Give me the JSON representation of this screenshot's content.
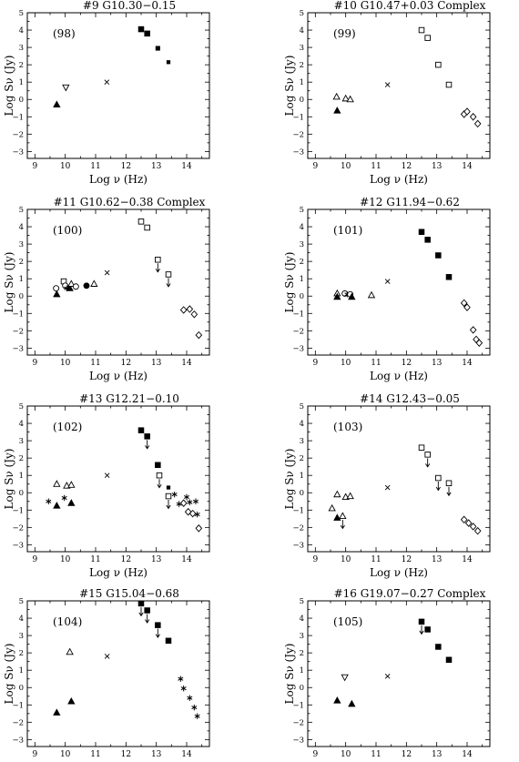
{
  "axis": {
    "xlabel": "Log ν (Hz)",
    "ylabel": "Log Sν (Jy)",
    "x_ticks": [
      9,
      10,
      11,
      12,
      13,
      14
    ],
    "y_ticks": [
      -3,
      -2,
      -1,
      0,
      1,
      2,
      3,
      4,
      5
    ],
    "xlim": [
      8.75,
      14.75
    ],
    "ylim": [
      -3.4,
      5.0
    ]
  },
  "chart_data": [
    {
      "type": "scatter",
      "title": "#9   G10.30−0.15",
      "label": "(98)",
      "points": [
        {
          "x": 9.72,
          "y": -0.3,
          "m": "tri_f"
        },
        {
          "x": 10.02,
          "y": 0.7,
          "m": "tri_inv_o"
        },
        {
          "x": 11.37,
          "y": 1.0,
          "m": "x"
        },
        {
          "x": 12.5,
          "y": 4.05,
          "m": "sq_f",
          "s": 1.0
        },
        {
          "x": 12.7,
          "y": 3.8,
          "m": "sq_f",
          "s": 1.0
        },
        {
          "x": 13.05,
          "y": 2.95,
          "m": "sq_f",
          "s": 0.75
        },
        {
          "x": 13.4,
          "y": 2.15,
          "m": "sq_f",
          "s": 0.6
        }
      ]
    },
    {
      "type": "scatter",
      "title": "#10   G10.47+0.03  Complex",
      "label": "(99)",
      "points": [
        {
          "x": 9.7,
          "y": 0.15,
          "m": "tri_o"
        },
        {
          "x": 9.72,
          "y": -0.65,
          "m": "tri_f"
        },
        {
          "x": 10.0,
          "y": 0.05,
          "m": "tri_o"
        },
        {
          "x": 10.15,
          "y": 0.0,
          "m": "tri_o"
        },
        {
          "x": 11.38,
          "y": 0.85,
          "m": "x"
        },
        {
          "x": 12.5,
          "y": 4.0,
          "m": "sq_o"
        },
        {
          "x": 12.7,
          "y": 3.55,
          "m": "sq_o"
        },
        {
          "x": 13.05,
          "y": 2.0,
          "m": "sq_o"
        },
        {
          "x": 13.4,
          "y": 0.85,
          "m": "sq_o"
        },
        {
          "x": 13.9,
          "y": -0.85,
          "m": "dia_o"
        },
        {
          "x": 14.0,
          "y": -0.7,
          "m": "dia_o"
        },
        {
          "x": 14.2,
          "y": -1.0,
          "m": "dia_o"
        },
        {
          "x": 14.35,
          "y": -1.4,
          "m": "dia_o"
        }
      ]
    },
    {
      "type": "scatter",
      "title": "#11   G10.62−0.38  Complex",
      "label": "(100)",
      "points": [
        {
          "x": 9.7,
          "y": 0.45,
          "m": "circ_o"
        },
        {
          "x": 9.72,
          "y": 0.1,
          "m": "tri_f"
        },
        {
          "x": 9.95,
          "y": 0.85,
          "m": "sq_o"
        },
        {
          "x": 10.0,
          "y": 0.6,
          "m": "circ_o"
        },
        {
          "x": 10.05,
          "y": 0.45,
          "m": "star"
        },
        {
          "x": 10.15,
          "y": 0.45,
          "m": "tri_f"
        },
        {
          "x": 10.2,
          "y": 0.7,
          "m": "tri_o"
        },
        {
          "x": 10.35,
          "y": 0.55,
          "m": "circ_o"
        },
        {
          "x": 10.7,
          "y": 0.6,
          "m": "circ_f"
        },
        {
          "x": 10.95,
          "y": 0.7,
          "m": "tri_o"
        },
        {
          "x": 11.38,
          "y": 1.35,
          "m": "x"
        },
        {
          "x": 12.5,
          "y": 4.3,
          "m": "sq_o"
        },
        {
          "x": 12.7,
          "y": 3.95,
          "m": "sq_o"
        },
        {
          "x": 13.05,
          "y": 2.1,
          "m": "sq_o",
          "ul": true
        },
        {
          "x": 13.4,
          "y": 1.25,
          "m": "sq_o",
          "ul": true
        },
        {
          "x": 13.9,
          "y": -0.8,
          "m": "dia_o"
        },
        {
          "x": 14.1,
          "y": -0.75,
          "m": "dia_o"
        },
        {
          "x": 14.25,
          "y": -1.05,
          "m": "dia_o"
        },
        {
          "x": 14.4,
          "y": -2.25,
          "m": "dia_o"
        }
      ]
    },
    {
      "type": "scatter",
      "title": "#12   G11.94−0.62",
      "label": "(101)",
      "points": [
        {
          "x": 9.72,
          "y": 0.15,
          "m": "tri_o"
        },
        {
          "x": 9.72,
          "y": -0.05,
          "m": "tri_f"
        },
        {
          "x": 9.97,
          "y": 0.15,
          "m": "circ_o"
        },
        {
          "x": 10.05,
          "y": 0.1,
          "m": "star"
        },
        {
          "x": 10.15,
          "y": 0.1,
          "m": "circ_o"
        },
        {
          "x": 10.2,
          "y": -0.05,
          "m": "tri_f"
        },
        {
          "x": 10.85,
          "y": 0.05,
          "m": "tri_o"
        },
        {
          "x": 11.38,
          "y": 0.85,
          "m": "x"
        },
        {
          "x": 12.5,
          "y": 3.7,
          "m": "sq_f"
        },
        {
          "x": 12.7,
          "y": 3.25,
          "m": "sq_f"
        },
        {
          "x": 13.05,
          "y": 2.35,
          "m": "sq_f"
        },
        {
          "x": 13.4,
          "y": 1.1,
          "m": "sq_f"
        },
        {
          "x": 13.9,
          "y": -0.4,
          "m": "dia_o"
        },
        {
          "x": 14.0,
          "y": -0.65,
          "m": "dia_o"
        },
        {
          "x": 14.2,
          "y": -1.95,
          "m": "dia_o"
        },
        {
          "x": 14.3,
          "y": -2.5,
          "m": "dia_o"
        },
        {
          "x": 14.4,
          "y": -2.7,
          "m": "dia_o"
        }
      ]
    },
    {
      "type": "scatter",
      "title": "#13   G12.21−0.10",
      "label": "(102)",
      "points": [
        {
          "x": 9.45,
          "y": -0.5,
          "m": "star"
        },
        {
          "x": 9.72,
          "y": 0.5,
          "m": "tri_o"
        },
        {
          "x": 9.72,
          "y": -0.75,
          "m": "tri_f"
        },
        {
          "x": 9.97,
          "y": -0.3,
          "m": "star"
        },
        {
          "x": 10.05,
          "y": 0.4,
          "m": "tri_o"
        },
        {
          "x": 10.2,
          "y": 0.45,
          "m": "tri_o"
        },
        {
          "x": 10.2,
          "y": -0.6,
          "m": "tri_f"
        },
        {
          "x": 11.38,
          "y": 1.0,
          "m": "x"
        },
        {
          "x": 12.5,
          "y": 3.6,
          "m": "sq_f"
        },
        {
          "x": 12.7,
          "y": 3.25,
          "m": "sq_f",
          "ul": true
        },
        {
          "x": 13.05,
          "y": 1.6,
          "m": "sq_f"
        },
        {
          "x": 13.1,
          "y": 1.0,
          "m": "sq_o",
          "ul": true
        },
        {
          "x": 13.4,
          "y": 0.3,
          "m": "sq_f",
          "s": 0.6
        },
        {
          "x": 13.4,
          "y": -0.2,
          "m": "sq_o",
          "ul": true
        },
        {
          "x": 13.6,
          "y": -0.1,
          "m": "star"
        },
        {
          "x": 13.75,
          "y": -0.65,
          "m": "star"
        },
        {
          "x": 13.9,
          "y": -0.6,
          "m": "dia_o"
        },
        {
          "x": 14.0,
          "y": -0.25,
          "m": "star"
        },
        {
          "x": 14.05,
          "y": -1.1,
          "m": "dia_o"
        },
        {
          "x": 14.1,
          "y": -0.55,
          "m": "star"
        },
        {
          "x": 14.2,
          "y": -1.2,
          "m": "dia_o"
        },
        {
          "x": 14.3,
          "y": -0.5,
          "m": "star"
        },
        {
          "x": 14.35,
          "y": -1.25,
          "m": "star"
        },
        {
          "x": 14.4,
          "y": -2.05,
          "m": "dia_o"
        }
      ]
    },
    {
      "type": "scatter",
      "title": "#14   G12.43−0.05",
      "label": "(103)",
      "points": [
        {
          "x": 9.55,
          "y": -0.9,
          "m": "tri_o"
        },
        {
          "x": 9.72,
          "y": -0.1,
          "m": "tri_o"
        },
        {
          "x": 9.72,
          "y": -1.45,
          "m": "tri_f"
        },
        {
          "x": 9.9,
          "y": -1.35,
          "m": "tri_o",
          "ul": true
        },
        {
          "x": 10.0,
          "y": -0.25,
          "m": "tri_o"
        },
        {
          "x": 10.15,
          "y": -0.2,
          "m": "tri_o"
        },
        {
          "x": 11.38,
          "y": 0.3,
          "m": "x"
        },
        {
          "x": 12.5,
          "y": 2.6,
          "m": "sq_o"
        },
        {
          "x": 12.7,
          "y": 2.2,
          "m": "sq_o",
          "ul": true
        },
        {
          "x": 13.05,
          "y": 0.85,
          "m": "sq_o",
          "ul": true
        },
        {
          "x": 13.4,
          "y": 0.55,
          "m": "sq_o",
          "ul": true
        },
        {
          "x": 13.9,
          "y": -1.55,
          "m": "dia_o"
        },
        {
          "x": 14.05,
          "y": -1.75,
          "m": "dia_o"
        },
        {
          "x": 14.2,
          "y": -1.95,
          "m": "dia_o"
        },
        {
          "x": 14.35,
          "y": -2.2,
          "m": "dia_o"
        }
      ]
    },
    {
      "type": "scatter",
      "title": "#15   G15.04−0.68",
      "label": "(104)",
      "points": [
        {
          "x": 9.72,
          "y": -1.45,
          "m": "tri_f"
        },
        {
          "x": 10.15,
          "y": 2.05,
          "m": "tri_o"
        },
        {
          "x": 10.2,
          "y": -0.8,
          "m": "tri_f"
        },
        {
          "x": 11.38,
          "y": 1.8,
          "m": "x"
        },
        {
          "x": 12.5,
          "y": 4.85,
          "m": "sq_f",
          "ul": true
        },
        {
          "x": 12.7,
          "y": 4.45,
          "m": "sq_f",
          "ul": true
        },
        {
          "x": 13.05,
          "y": 3.6,
          "m": "sq_f",
          "ul": true
        },
        {
          "x": 13.4,
          "y": 2.7,
          "m": "sq_f"
        },
        {
          "x": 13.8,
          "y": 0.5,
          "m": "star"
        },
        {
          "x": 13.9,
          "y": -0.05,
          "m": "star"
        },
        {
          "x": 14.1,
          "y": -0.6,
          "m": "star"
        },
        {
          "x": 14.25,
          "y": -1.15,
          "m": "star"
        },
        {
          "x": 14.35,
          "y": -1.65,
          "m": "star"
        }
      ]
    },
    {
      "type": "scatter",
      "title": "#16   G19.07−0.27  Complex",
      "label": "(105)",
      "points": [
        {
          "x": 9.72,
          "y": -0.75,
          "m": "tri_f"
        },
        {
          "x": 9.97,
          "y": 0.6,
          "m": "tri_inv_o"
        },
        {
          "x": 10.2,
          "y": -0.95,
          "m": "tri_f"
        },
        {
          "x": 11.38,
          "y": 0.65,
          "m": "x"
        },
        {
          "x": 12.5,
          "y": 3.8,
          "m": "sq_f",
          "ul": true
        },
        {
          "x": 12.7,
          "y": 3.35,
          "m": "sq_f"
        },
        {
          "x": 13.05,
          "y": 2.35,
          "m": "sq_f"
        },
        {
          "x": 13.4,
          "y": 1.6,
          "m": "sq_f"
        }
      ]
    }
  ]
}
